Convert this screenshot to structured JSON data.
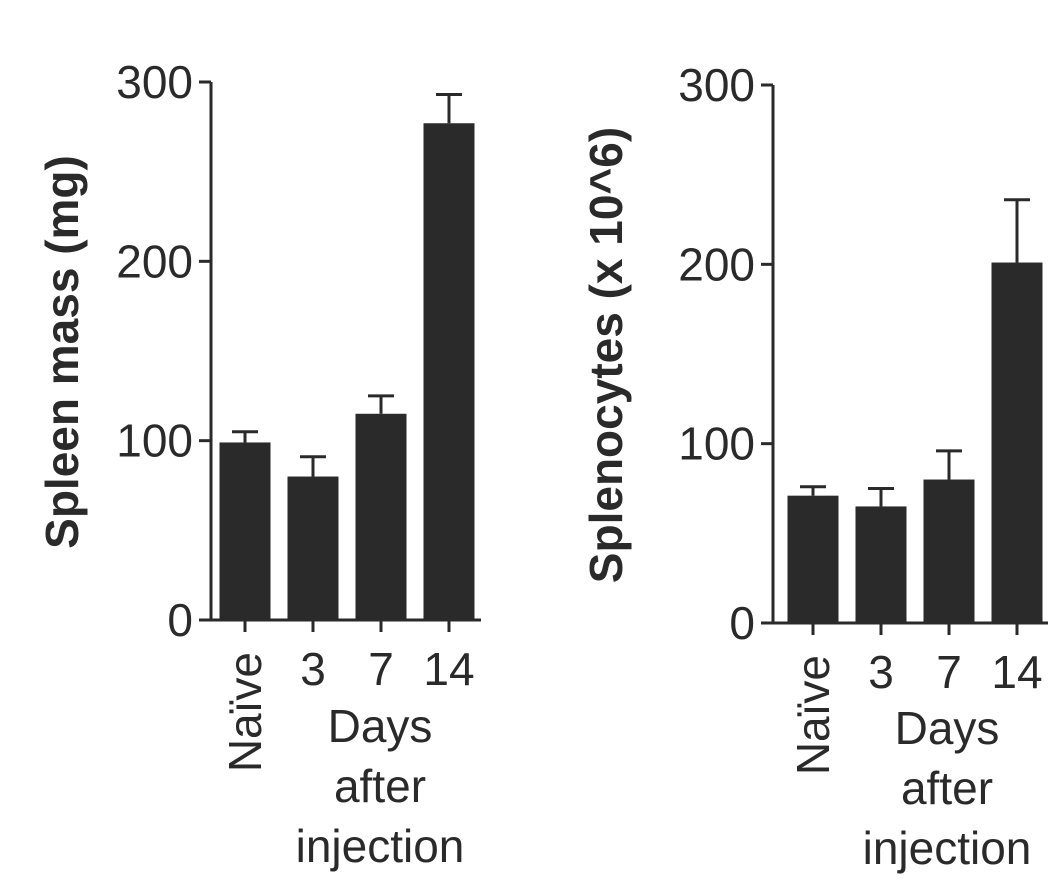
{
  "chart_data": [
    {
      "type": "bar",
      "ylabel": "Spleen mass (mg)",
      "xlabel_lines": [
        "Days",
        "after",
        "injection"
      ],
      "categories": [
        "Naïve",
        "3",
        "7",
        "14"
      ],
      "values": [
        99,
        80,
        115,
        277
      ],
      "errors": [
        6,
        11,
        10,
        16
      ],
      "ylim": [
        0,
        300
      ],
      "yticks": [
        "0",
        "100",
        "200",
        "300"
      ],
      "bar_color": "#2a2a2a",
      "grid": false,
      "legend": "none"
    },
    {
      "type": "bar",
      "ylabel": "Splenocytes (x 10^6)",
      "xlabel_lines": [
        "Days",
        "after",
        "injection"
      ],
      "categories": [
        "Naïve",
        "3",
        "7",
        "14"
      ],
      "values": [
        71,
        65,
        80,
        201
      ],
      "errors": [
        5,
        10,
        16,
        35
      ],
      "ylim": [
        0,
        300
      ],
      "yticks": [
        "0",
        "100",
        "200",
        "300"
      ],
      "bar_color": "#2a2a2a",
      "grid": false,
      "legend": "none"
    }
  ]
}
